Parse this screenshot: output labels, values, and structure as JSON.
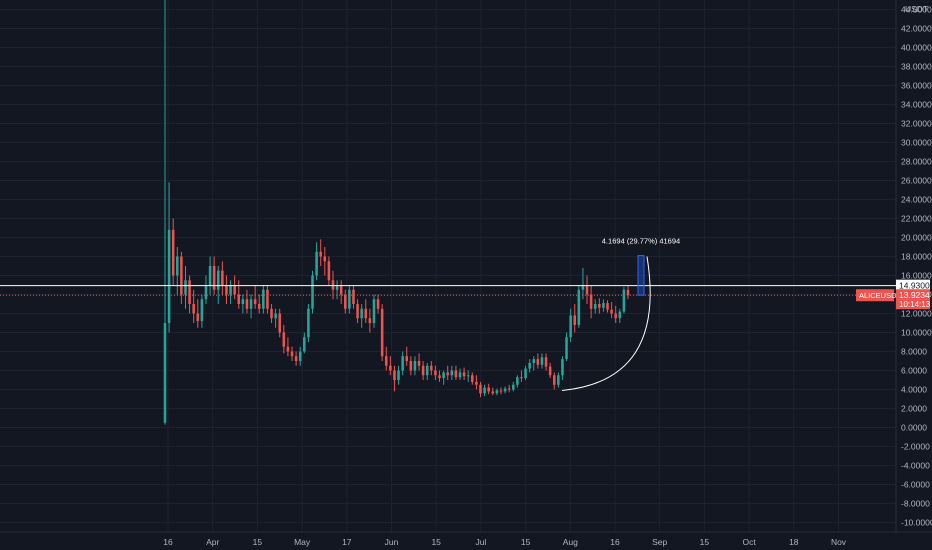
{
  "chart_data": {
    "type": "candlestick",
    "symbol": "ALICEUSDT",
    "currency": "USDT",
    "current_price": "13.9234",
    "countdown": "10:14:13",
    "hline_label": "14.9300",
    "hline_value": 14.93,
    "measure_label": "4.1694 (29.77%) 41694",
    "y_ticks": [
      "-10.0000",
      "-8.0000",
      "-6.0000",
      "-4.0000",
      "-2.0000",
      "0.0000",
      "2.0000",
      "4.0000",
      "6.0000",
      "8.0000",
      "10.0000",
      "12.0000",
      "14.0000",
      "16.0000",
      "18.0000",
      "20.0000",
      "22.0000",
      "24.0000",
      "26.0000",
      "28.0000",
      "30.0000",
      "32.0000",
      "34.0000",
      "36.0000",
      "38.0000",
      "40.0000",
      "42.0000",
      "44.0000"
    ],
    "x_ticks": [
      "16",
      "Apr",
      "15",
      "May",
      "17",
      "Jun",
      "15",
      "Jul",
      "15",
      "Aug",
      "16",
      "Sep",
      "15",
      "Oct",
      "18",
      "Nov"
    ],
    "ylim": [
      -11,
      45
    ],
    "colors": {
      "up": "#26a69a",
      "down": "#ef5350",
      "hline": "#ffffff",
      "price_line": "#ef5350",
      "measure": "#2962ff",
      "arc": "#ffffff"
    },
    "candles": [
      {
        "o": 0.5,
        "h": 48,
        "l": 0.3,
        "c": 11
      },
      {
        "o": 11,
        "h": 25.8,
        "l": 10,
        "c": 20.8
      },
      {
        "o": 20.8,
        "h": 22,
        "l": 15,
        "c": 16
      },
      {
        "o": 16,
        "h": 19,
        "l": 14,
        "c": 18
      },
      {
        "o": 18,
        "h": 18.5,
        "l": 13,
        "c": 14
      },
      {
        "o": 14,
        "h": 17,
        "l": 12.5,
        "c": 15.5
      },
      {
        "o": 15.5,
        "h": 16,
        "l": 12,
        "c": 13
      },
      {
        "o": 13,
        "h": 14.5,
        "l": 11,
        "c": 12
      },
      {
        "o": 12,
        "h": 13.5,
        "l": 10.5,
        "c": 11.2
      },
      {
        "o": 11.2,
        "h": 14,
        "l": 10.5,
        "c": 13.5
      },
      {
        "o": 13.5,
        "h": 16,
        "l": 13,
        "c": 15
      },
      {
        "o": 15,
        "h": 18,
        "l": 14,
        "c": 17
      },
      {
        "o": 17,
        "h": 18,
        "l": 14,
        "c": 14.5
      },
      {
        "o": 14.5,
        "h": 17,
        "l": 13,
        "c": 16.5
      },
      {
        "o": 16.5,
        "h": 17.5,
        "l": 14,
        "c": 15
      },
      {
        "o": 15,
        "h": 16,
        "l": 13,
        "c": 14
      },
      {
        "o": 14,
        "h": 15.5,
        "l": 13,
        "c": 15
      },
      {
        "o": 15,
        "h": 16,
        "l": 13.5,
        "c": 14
      },
      {
        "o": 14,
        "h": 15.5,
        "l": 12.5,
        "c": 13
      },
      {
        "o": 13,
        "h": 14,
        "l": 12,
        "c": 13.5
      },
      {
        "o": 13.5,
        "h": 14.5,
        "l": 12,
        "c": 12.5
      },
      {
        "o": 12.5,
        "h": 14,
        "l": 11.5,
        "c": 13.5
      },
      {
        "o": 13.5,
        "h": 15,
        "l": 12.5,
        "c": 13
      },
      {
        "o": 13,
        "h": 14,
        "l": 12,
        "c": 12.5
      },
      {
        "o": 12.5,
        "h": 15,
        "l": 12,
        "c": 14.5
      },
      {
        "o": 14.5,
        "h": 15,
        "l": 12,
        "c": 12.5
      },
      {
        "o": 12.5,
        "h": 13,
        "l": 11,
        "c": 11.5
      },
      {
        "o": 11.5,
        "h": 12.5,
        "l": 10.5,
        "c": 12
      },
      {
        "o": 12,
        "h": 12.5,
        "l": 9.5,
        "c": 10
      },
      {
        "o": 10,
        "h": 10.8,
        "l": 7.8,
        "c": 8.5
      },
      {
        "o": 8.5,
        "h": 9.5,
        "l": 7.5,
        "c": 8
      },
      {
        "o": 8,
        "h": 8.5,
        "l": 7,
        "c": 7.5
      },
      {
        "o": 7.5,
        "h": 8,
        "l": 6.5,
        "c": 7
      },
      {
        "o": 7,
        "h": 8.5,
        "l": 6.5,
        "c": 8
      },
      {
        "o": 8,
        "h": 10,
        "l": 7.8,
        "c": 9.5
      },
      {
        "o": 9.5,
        "h": 13,
        "l": 9,
        "c": 12.5
      },
      {
        "o": 12.5,
        "h": 16.5,
        "l": 12,
        "c": 16
      },
      {
        "o": 16,
        "h": 19.5,
        "l": 15.5,
        "c": 18.5
      },
      {
        "o": 18.5,
        "h": 19.8,
        "l": 17,
        "c": 18
      },
      {
        "o": 18,
        "h": 19,
        "l": 16,
        "c": 17.5
      },
      {
        "o": 17.5,
        "h": 18,
        "l": 15,
        "c": 15.5
      },
      {
        "o": 15.5,
        "h": 16.5,
        "l": 13.5,
        "c": 14.5
      },
      {
        "o": 14.5,
        "h": 15.5,
        "l": 13.5,
        "c": 15
      },
      {
        "o": 15,
        "h": 15.5,
        "l": 13,
        "c": 14
      },
      {
        "o": 14,
        "h": 14.5,
        "l": 12,
        "c": 12.5
      },
      {
        "o": 12.5,
        "h": 15,
        "l": 12,
        "c": 14.5
      },
      {
        "o": 14.5,
        "h": 15,
        "l": 12.5,
        "c": 13
      },
      {
        "o": 13,
        "h": 13.5,
        "l": 11,
        "c": 11.5
      },
      {
        "o": 11.5,
        "h": 13,
        "l": 10.5,
        "c": 12.5
      },
      {
        "o": 12.5,
        "h": 13.5,
        "l": 11,
        "c": 11.5
      },
      {
        "o": 11.5,
        "h": 12.5,
        "l": 10,
        "c": 11
      },
      {
        "o": 11,
        "h": 14,
        "l": 10.5,
        "c": 13.5
      },
      {
        "o": 13.5,
        "h": 14,
        "l": 12,
        "c": 12.5
      },
      {
        "o": 12.5,
        "h": 13,
        "l": 7,
        "c": 7.5
      },
      {
        "o": 7.5,
        "h": 8.5,
        "l": 6,
        "c": 6.5
      },
      {
        "o": 6.5,
        "h": 7.5,
        "l": 5.5,
        "c": 6
      },
      {
        "o": 6,
        "h": 6.5,
        "l": 3.8,
        "c": 5
      },
      {
        "o": 5,
        "h": 6.5,
        "l": 4.5,
        "c": 6
      },
      {
        "o": 6,
        "h": 8,
        "l": 5.5,
        "c": 7.5
      },
      {
        "o": 7.5,
        "h": 8.5,
        "l": 6.5,
        "c": 7
      },
      {
        "o": 7,
        "h": 7.5,
        "l": 5.5,
        "c": 6
      },
      {
        "o": 6,
        "h": 7.5,
        "l": 5.5,
        "c": 7
      },
      {
        "o": 7,
        "h": 7.8,
        "l": 6,
        "c": 6.5
      },
      {
        "o": 6.5,
        "h": 7,
        "l": 5,
        "c": 5.5
      },
      {
        "o": 5.5,
        "h": 6.8,
        "l": 5,
        "c": 6.5
      },
      {
        "o": 6.5,
        "h": 7,
        "l": 5.5,
        "c": 6
      },
      {
        "o": 6,
        "h": 6.5,
        "l": 5,
        "c": 5.5
      },
      {
        "o": 5.5,
        "h": 6,
        "l": 4.8,
        "c": 5.2
      },
      {
        "o": 5.2,
        "h": 6,
        "l": 4.5,
        "c": 5.8
      },
      {
        "o": 5.8,
        "h": 6.5,
        "l": 5,
        "c": 5.5
      },
      {
        "o": 5.5,
        "h": 6.5,
        "l": 5,
        "c": 6
      },
      {
        "o": 6,
        "h": 6.5,
        "l": 5,
        "c": 5.3
      },
      {
        "o": 5.3,
        "h": 6.2,
        "l": 5,
        "c": 5.8
      },
      {
        "o": 5.8,
        "h": 6.3,
        "l": 5,
        "c": 5.4
      },
      {
        "o": 5.4,
        "h": 6,
        "l": 4.8,
        "c": 5.5
      },
      {
        "o": 5.5,
        "h": 5.8,
        "l": 4.5,
        "c": 4.8
      },
      {
        "o": 4.8,
        "h": 5.5,
        "l": 4,
        "c": 4.5
      },
      {
        "o": 4.5,
        "h": 4.8,
        "l": 3.2,
        "c": 3.6
      },
      {
        "o": 3.6,
        "h": 4.5,
        "l": 3.3,
        "c": 4.2
      },
      {
        "o": 4.2,
        "h": 4.6,
        "l": 3.5,
        "c": 3.8
      },
      {
        "o": 3.8,
        "h": 4.2,
        "l": 3.4,
        "c": 3.6
      },
      {
        "o": 3.6,
        "h": 4.1,
        "l": 3.4,
        "c": 3.9
      },
      {
        "o": 3.9,
        "h": 4.2,
        "l": 3.5,
        "c": 3.8
      },
      {
        "o": 3.8,
        "h": 4.3,
        "l": 3.6,
        "c": 4.1
      },
      {
        "o": 4.1,
        "h": 4.5,
        "l": 3.7,
        "c": 4
      },
      {
        "o": 4,
        "h": 4.8,
        "l": 3.8,
        "c": 4.5
      },
      {
        "o": 4.5,
        "h": 5.5,
        "l": 4.2,
        "c": 5.3
      },
      {
        "o": 5.3,
        "h": 6,
        "l": 4.8,
        "c": 5.2
      },
      {
        "o": 5.2,
        "h": 6.5,
        "l": 5,
        "c": 6.2
      },
      {
        "o": 6.2,
        "h": 7.2,
        "l": 5.8,
        "c": 6.8
      },
      {
        "o": 6.8,
        "h": 7.5,
        "l": 6,
        "c": 7.2
      },
      {
        "o": 7.2,
        "h": 7.8,
        "l": 6.2,
        "c": 6.6
      },
      {
        "o": 6.6,
        "h": 7.8,
        "l": 6.2,
        "c": 7.4
      },
      {
        "o": 7.4,
        "h": 7.8,
        "l": 6,
        "c": 6.4
      },
      {
        "o": 6.4,
        "h": 6.8,
        "l": 5.2,
        "c": 5.5
      },
      {
        "o": 5.5,
        "h": 5.8,
        "l": 4,
        "c": 4.5
      },
      {
        "o": 4.5,
        "h": 5.8,
        "l": 4.2,
        "c": 5.5
      },
      {
        "o": 5.5,
        "h": 7.5,
        "l": 5,
        "c": 7.2
      },
      {
        "o": 7.2,
        "h": 10,
        "l": 7,
        "c": 9.5
      },
      {
        "o": 9.5,
        "h": 12.5,
        "l": 9,
        "c": 11.8
      },
      {
        "o": 11.8,
        "h": 13,
        "l": 10,
        "c": 10.8
      },
      {
        "o": 10.8,
        "h": 15,
        "l": 10.5,
        "c": 14.5
      },
      {
        "o": 14.5,
        "h": 16.8,
        "l": 13.5,
        "c": 15
      },
      {
        "o": 15,
        "h": 16,
        "l": 13,
        "c": 14
      },
      {
        "o": 14,
        "h": 15,
        "l": 11.5,
        "c": 12.5
      },
      {
        "o": 12.5,
        "h": 13.5,
        "l": 12,
        "c": 13
      },
      {
        "o": 13,
        "h": 13.6,
        "l": 12,
        "c": 12.6
      },
      {
        "o": 12.6,
        "h": 13.5,
        "l": 12.2,
        "c": 13.1
      },
      {
        "o": 13.1,
        "h": 13.4,
        "l": 12.1,
        "c": 12.4
      },
      {
        "o": 12.4,
        "h": 13.2,
        "l": 11.5,
        "c": 12
      },
      {
        "o": 12,
        "h": 12.8,
        "l": 11,
        "c": 11.5
      },
      {
        "o": 11.5,
        "h": 12.5,
        "l": 11,
        "c": 12.2
      },
      {
        "o": 12.2,
        "h": 14.8,
        "l": 12,
        "c": 14.5
      },
      {
        "o": 14.5,
        "h": 14.9,
        "l": 13.5,
        "c": 13.92
      }
    ]
  }
}
